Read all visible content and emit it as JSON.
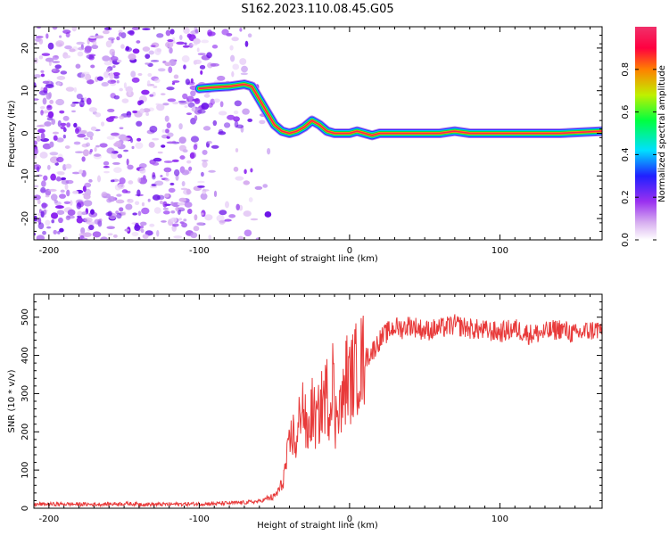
{
  "figure": {
    "title": "S162.2023.110.08.45.G05"
  },
  "chart_data": [
    {
      "type": "heatmap",
      "xlabel": "Height of straight line (km)",
      "ylabel": "Frequency (Hz)",
      "xlim": [
        -210,
        168
      ],
      "ylim": [
        -25,
        25
      ],
      "xticks": [
        -200,
        -100,
        0,
        100
      ],
      "yticks": [
        -20,
        -10,
        0,
        10,
        20
      ],
      "ridge": {
        "x": [
          -100,
          -90,
          -80,
          -70,
          -65,
          -60,
          -55,
          -50,
          -45,
          -40,
          -35,
          -30,
          -25,
          -20,
          -15,
          -10,
          -5,
          0,
          5,
          10,
          15,
          20,
          40,
          60,
          70,
          80,
          100,
          120,
          140,
          168
        ],
        "y": [
          10.5,
          10.8,
          11,
          11.5,
          11,
          8,
          5,
          2,
          0.5,
          0,
          0.5,
          1.5,
          3,
          2,
          0.5,
          0,
          0,
          0,
          0.5,
          0,
          -0.5,
          0,
          0,
          0,
          0.5,
          0,
          0,
          0,
          0,
          0.5
        ]
      },
      "noise_region": [
        -210,
        -65
      ],
      "colorbar": {
        "label": "Normalized spectral amplitude",
        "range": [
          0,
          1
        ],
        "ticks": [
          "0.0",
          "0.2",
          "0.4",
          "0.6",
          "0.8"
        ],
        "colors": [
          "#ffffff",
          "#d8b0f0",
          "#9a30f0",
          "#2020ff",
          "#00e0ff",
          "#00ff40",
          "#c0f000",
          "#ff8000",
          "#ff0040",
          "#f0306a"
        ]
      }
    },
    {
      "type": "line",
      "xlabel": "Height of straight line (km)",
      "ylabel": "SNR (10 * v/v)",
      "xlim": [
        -210,
        168
      ],
      "ylim": [
        0,
        560
      ],
      "xticks": [
        -200,
        -100,
        0,
        100
      ],
      "yticks": [
        0,
        100,
        200,
        300,
        400,
        500
      ],
      "color": "#e83a3a",
      "series": [
        {
          "x": [
            -210,
            -190,
            -170,
            -150,
            -130,
            -110,
            -90,
            -70,
            -60,
            -55,
            -50,
            -45,
            -42,
            -38,
            -35,
            -32,
            -28,
            -25,
            -22,
            -20,
            -18,
            -15,
            -13,
            -11,
            -10,
            -8,
            -5,
            -2,
            0,
            5,
            10,
            15,
            20,
            25,
            30,
            35,
            40,
            50,
            60,
            70,
            80,
            90,
            100,
            110,
            120,
            130,
            140,
            150,
            160,
            168
          ],
          "y": [
            10,
            11,
            10,
            12,
            10,
            11,
            12,
            15,
            18,
            25,
            30,
            60,
            120,
            200,
            160,
            300,
            180,
            260,
            220,
            250,
            280,
            300,
            250,
            430,
            180,
            300,
            260,
            350,
            330,
            370,
            390,
            410,
            440,
            460,
            475,
            470,
            480,
            465,
            470,
            480,
            470,
            465,
            460,
            470,
            455,
            460,
            470,
            455,
            465,
            470
          ]
        }
      ]
    }
  ]
}
